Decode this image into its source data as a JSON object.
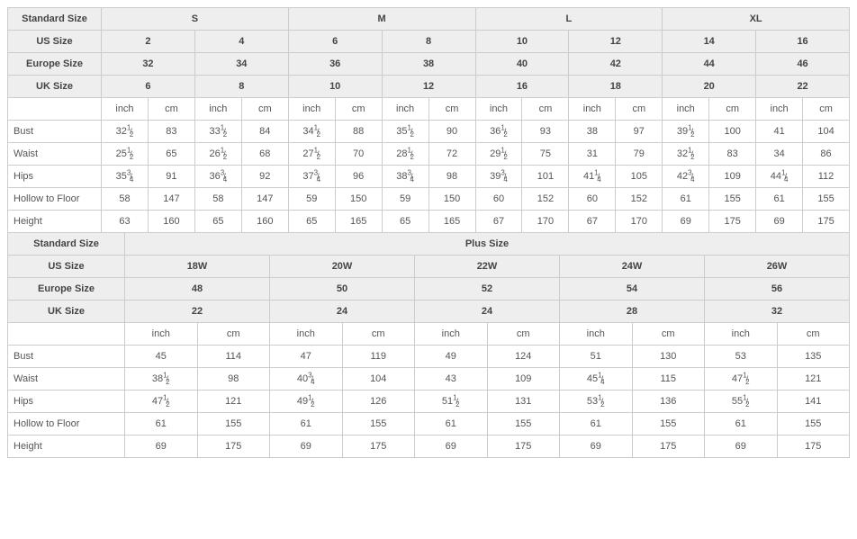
{
  "labels": {
    "standard_size": "Standard Size",
    "us_size": "US Size",
    "europe_size": "Europe Size",
    "uk_size": "UK Size",
    "inch": "inch",
    "cm": "cm",
    "plus_size": "Plus Size"
  },
  "measurements": [
    "Bust",
    "Waist",
    "Hips",
    "Hollow to Floor",
    "Height"
  ],
  "colors": {
    "header_bg": "#eeeeee",
    "border": "#cccccc",
    "text": "#555555",
    "bg": "#ffffff"
  },
  "standard": {
    "size_groups": [
      "S",
      "M",
      "L",
      "XL"
    ],
    "us": [
      "2",
      "4",
      "6",
      "8",
      "10",
      "12",
      "14",
      "16"
    ],
    "eu": [
      "32",
      "34",
      "36",
      "38",
      "40",
      "42",
      "44",
      "46"
    ],
    "uk": [
      "6",
      "8",
      "10",
      "12",
      "16",
      "18",
      "20",
      "22"
    ],
    "rows": {
      "Bust": {
        "inch": [
          "32 1/2",
          "33 1/2",
          "34 1/2",
          "35 1/2",
          "36 1/2",
          "38",
          "39 1/2",
          "41"
        ],
        "cm": [
          "83",
          "84",
          "88",
          "90",
          "93",
          "97",
          "100",
          "104"
        ]
      },
      "Waist": {
        "inch": [
          "25 1/2",
          "26 1/2",
          "27 1/2",
          "28 1/2",
          "29 1/2",
          "31",
          "32 1/2",
          "34"
        ],
        "cm": [
          "65",
          "68",
          "70",
          "72",
          "75",
          "79",
          "83",
          "86"
        ]
      },
      "Hips": {
        "inch": [
          "35 3/4",
          "36 3/4",
          "37 3/4",
          "38 3/4",
          "39 3/4",
          "41 1/4",
          "42 3/4",
          "44 1/4"
        ],
        "cm": [
          "91",
          "92",
          "96",
          "98",
          "101",
          "105",
          "109",
          "112"
        ]
      },
      "Hollow to Floor": {
        "inch": [
          "58",
          "58",
          "59",
          "59",
          "60",
          "60",
          "61",
          "61"
        ],
        "cm": [
          "147",
          "147",
          "150",
          "150",
          "152",
          "152",
          "155",
          "155"
        ]
      },
      "Height": {
        "inch": [
          "63",
          "65",
          "65",
          "65",
          "67",
          "67",
          "69",
          "69"
        ],
        "cm": [
          "160",
          "160",
          "165",
          "165",
          "170",
          "170",
          "175",
          "175"
        ]
      }
    }
  },
  "plus": {
    "us": [
      "18W",
      "20W",
      "22W",
      "24W",
      "26W"
    ],
    "eu": [
      "48",
      "50",
      "52",
      "54",
      "56"
    ],
    "uk": [
      "22",
      "24",
      "24",
      "28",
      "32"
    ],
    "rows": {
      "Bust": {
        "inch": [
          "45",
          "47",
          "49",
          "51",
          "53"
        ],
        "cm": [
          "114",
          "119",
          "124",
          "130",
          "135"
        ]
      },
      "Waist": {
        "inch": [
          "38 1/2",
          "40 3/4",
          "43",
          "45 1/4",
          "47 1/2"
        ],
        "cm": [
          "98",
          "104",
          "109",
          "115",
          "121"
        ]
      },
      "Hips": {
        "inch": [
          "47 1/2",
          "49 1/2",
          "51 1/2",
          "53 1/2",
          "55 1/2"
        ],
        "cm": [
          "121",
          "126",
          "131",
          "136",
          "141"
        ]
      },
      "Hollow to Floor": {
        "inch": [
          "61",
          "61",
          "61",
          "61",
          "61"
        ],
        "cm": [
          "155",
          "155",
          "155",
          "155",
          "155"
        ]
      },
      "Height": {
        "inch": [
          "69",
          "69",
          "69",
          "69",
          "69"
        ],
        "cm": [
          "175",
          "175",
          "175",
          "175",
          "175"
        ]
      }
    }
  }
}
